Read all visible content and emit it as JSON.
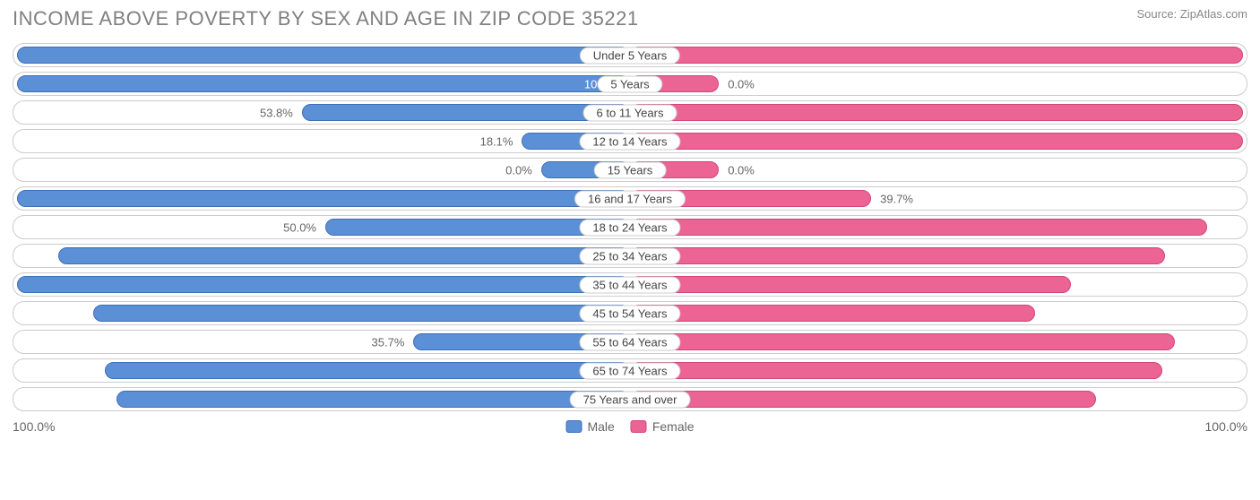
{
  "title": "INCOME ABOVE POVERTY BY SEX AND AGE IN ZIP CODE 35221",
  "source": "Source: ZipAtlas.com",
  "colors": {
    "male_fill": "#5b8fd6",
    "male_border": "#3f6fb5",
    "female_fill": "#ec6493",
    "female_border": "#d14578",
    "text_muted": "#666666",
    "text_title": "#808080",
    "track_border": "#cccccc",
    "background": "#ffffff"
  },
  "axis": {
    "left": "100.0%",
    "right": "100.0%"
  },
  "legend": [
    {
      "label": "Male",
      "fill": "#5b8fd6",
      "border": "#3f6fb5"
    },
    {
      "label": "Female",
      "fill": "#ec6493",
      "border": "#d14578"
    }
  ],
  "min_bar_pct": 15,
  "rows": [
    {
      "category": "Under 5 Years",
      "male": 100.0,
      "female": 100.0
    },
    {
      "category": "5 Years",
      "male": 100.0,
      "female": 0.0
    },
    {
      "category": "6 to 11 Years",
      "male": 53.8,
      "female": 100.0
    },
    {
      "category": "12 to 14 Years",
      "male": 18.1,
      "female": 100.0
    },
    {
      "category": "15 Years",
      "male": 0.0,
      "female": 0.0
    },
    {
      "category": "16 and 17 Years",
      "male": 100.0,
      "female": 39.7
    },
    {
      "category": "18 to 24 Years",
      "male": 50.0,
      "female": 94.2
    },
    {
      "category": "25 to 34 Years",
      "male": 93.3,
      "female": 87.4
    },
    {
      "category": "35 to 44 Years",
      "male": 100.0,
      "female": 72.1
    },
    {
      "category": "45 to 54 Years",
      "male": 87.6,
      "female": 66.3
    },
    {
      "category": "55 to 64 Years",
      "male": 35.7,
      "female": 88.9
    },
    {
      "category": "65 to 74 Years",
      "male": 85.8,
      "female": 86.9
    },
    {
      "category": "75 Years and over",
      "male": 83.8,
      "female": 76.2
    }
  ]
}
